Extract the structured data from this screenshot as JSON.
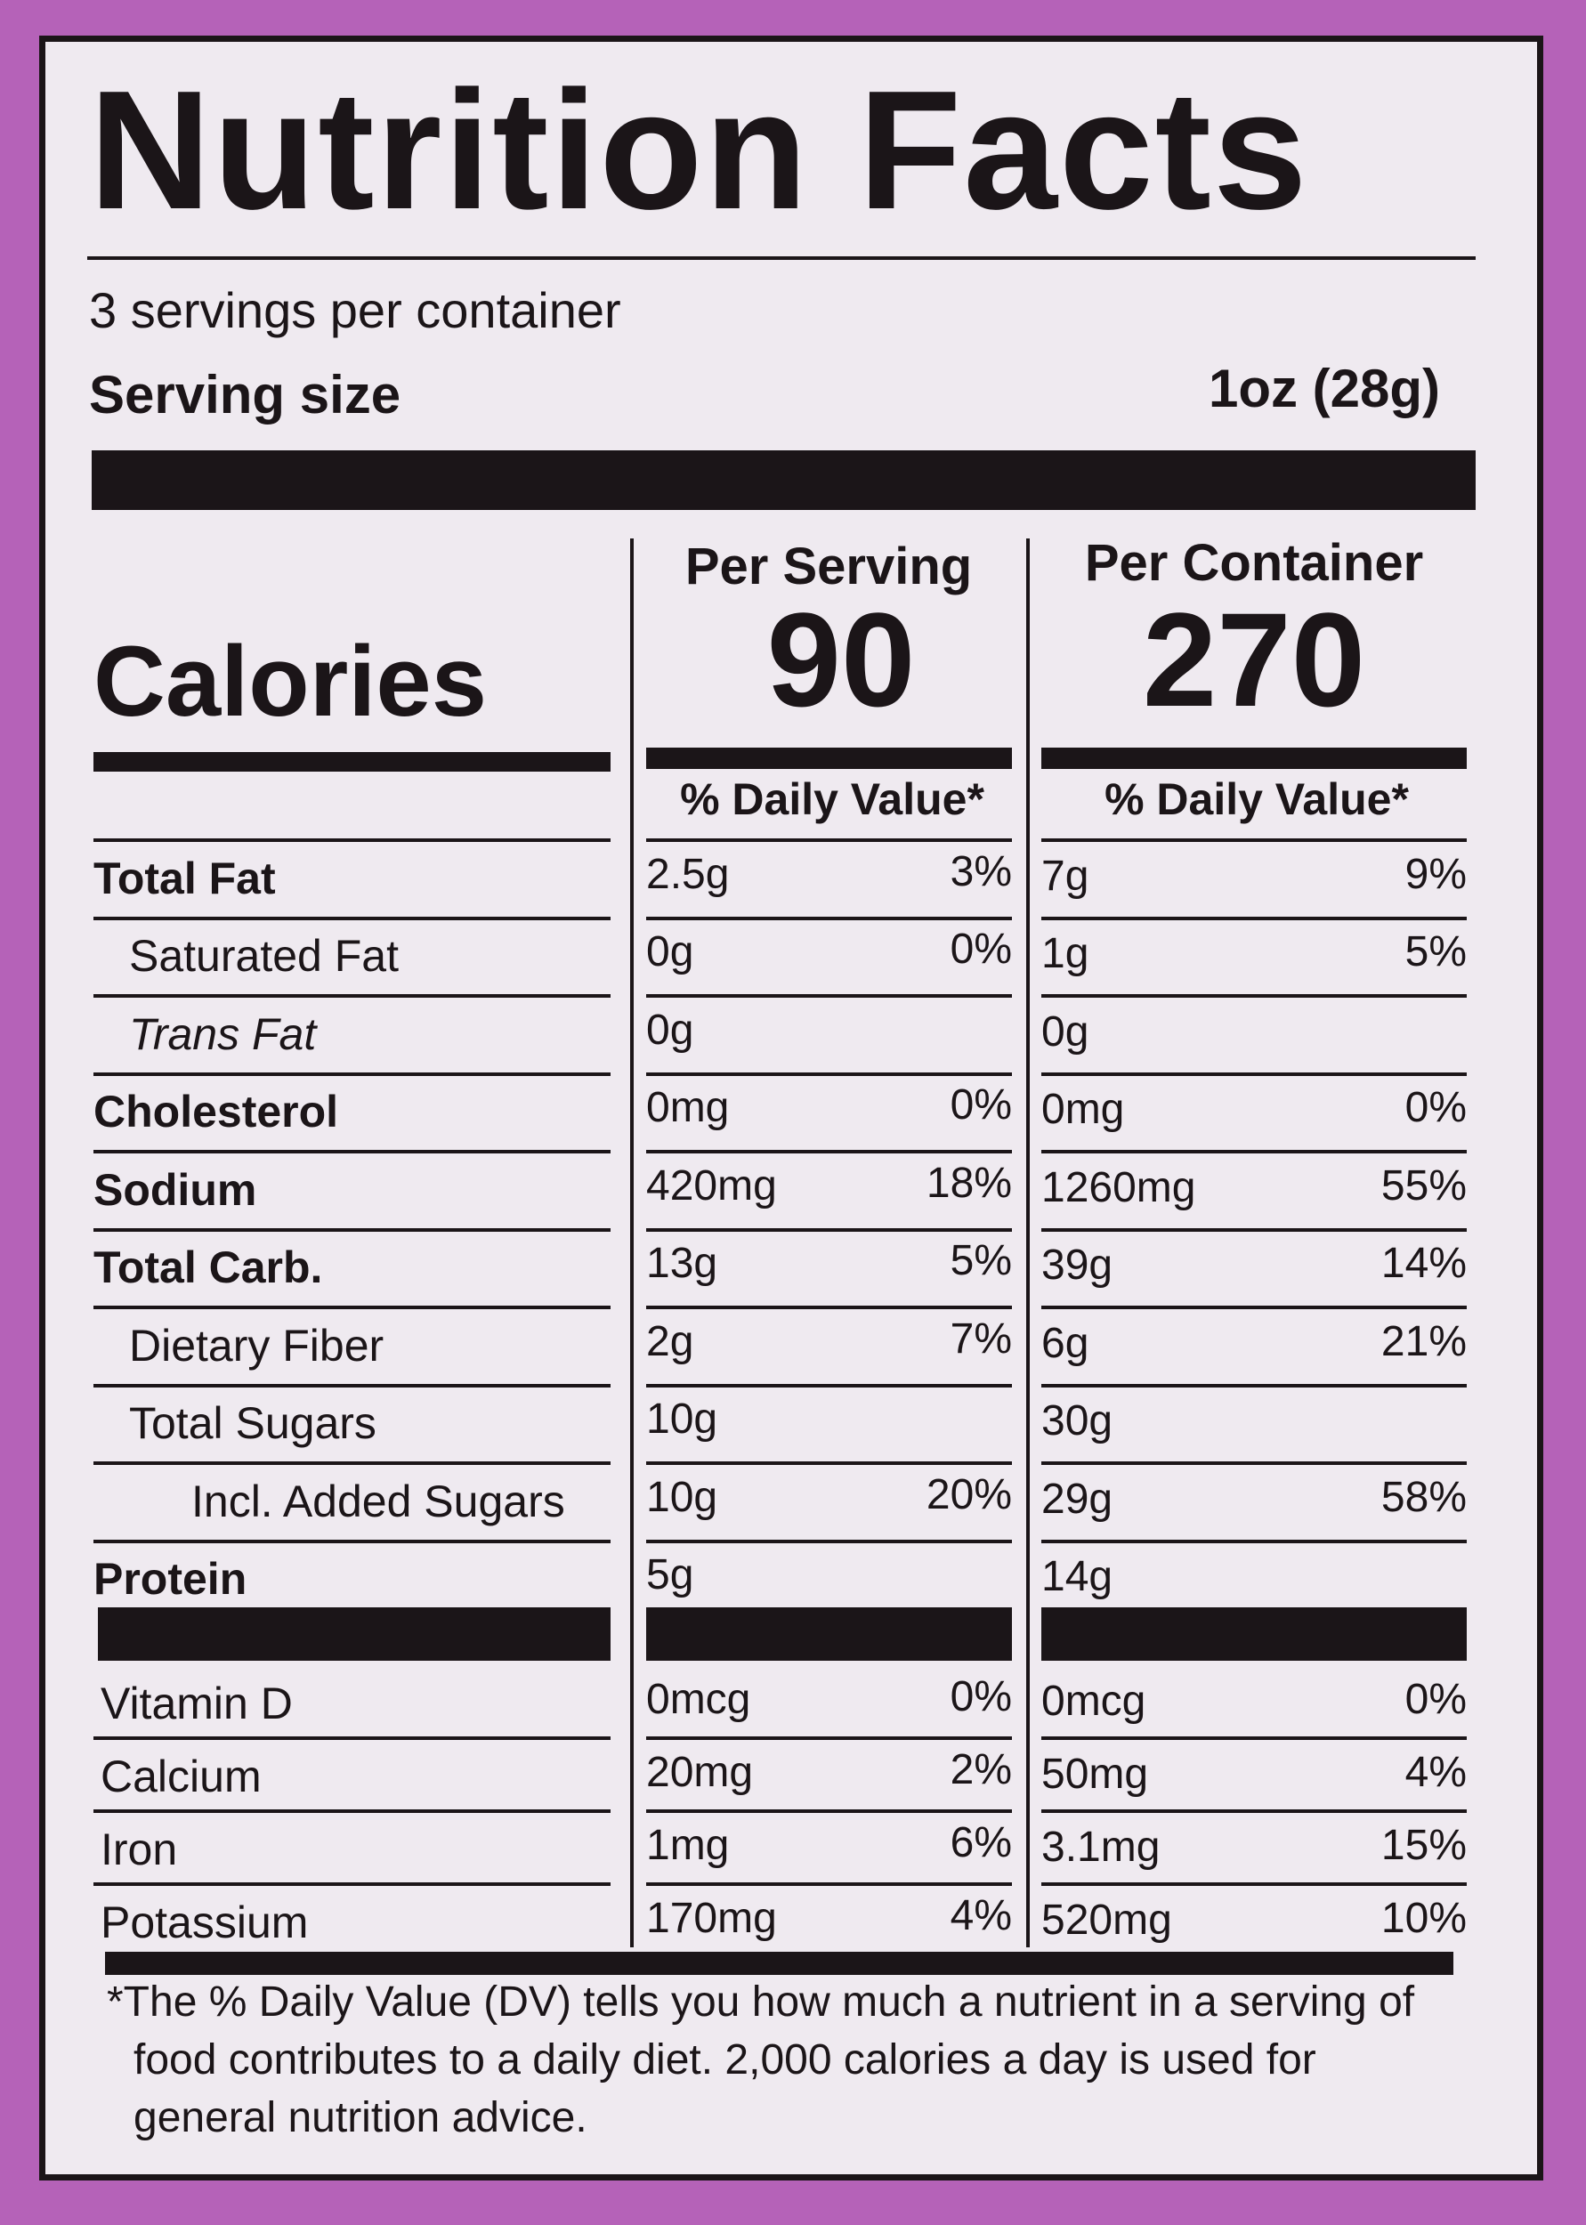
{
  "title": "Nutrition Facts",
  "servings_per_container": "3 servings per container",
  "serving_size": {
    "label": "Serving size",
    "value": "1oz (28g)"
  },
  "calories": {
    "label": "Calories",
    "per_serving": {
      "header": "Per Serving",
      "value": "90",
      "dv_header": "% Daily Value*"
    },
    "per_container": {
      "header": "Per Container",
      "value": "270",
      "dv_header": "% Daily Value*"
    }
  },
  "nutrients": [
    {
      "name": "Total Fat",
      "serving": "2.5g",
      "serving_dv": "3%",
      "container": "7g",
      "container_dv": "9%"
    },
    {
      "name": "Saturated Fat",
      "serving": "0g",
      "serving_dv": "0%",
      "container": "1g",
      "container_dv": "5%"
    },
    {
      "name": "Trans Fat",
      "serving": "0g",
      "serving_dv": null,
      "container": "0g",
      "container_dv": null
    },
    {
      "name": "Cholesterol",
      "serving": "0mg",
      "serving_dv": "0%",
      "container": "0mg",
      "container_dv": "0%"
    },
    {
      "name": "Sodium",
      "serving": "420mg",
      "serving_dv": "18%",
      "container": "1260mg",
      "container_dv": "55%"
    },
    {
      "name": "Total Carb.",
      "serving": "13g",
      "serving_dv": "5%",
      "container": "39g",
      "container_dv": "14%"
    },
    {
      "name": "Dietary Fiber",
      "serving": "2g",
      "serving_dv": "7%",
      "container": "6g",
      "container_dv": "21%"
    },
    {
      "name": "Total Sugars",
      "serving": "10g",
      "serving_dv": null,
      "container": "30g",
      "container_dv": null
    },
    {
      "name": "Incl. Added Sugars",
      "serving": "10g",
      "serving_dv": "20%",
      "container": "29g",
      "container_dv": "58%"
    },
    {
      "name": "Protein",
      "serving": "5g",
      "serving_dv": null,
      "container": "14g",
      "container_dv": null
    }
  ],
  "vitamins": [
    {
      "name": "Vitamin D",
      "serving": "0mcg",
      "serving_dv": "0%",
      "container": "0mcg",
      "container_dv": "0%"
    },
    {
      "name": "Calcium",
      "serving": "20mg",
      "serving_dv": "2%",
      "container": "50mg",
      "container_dv": "4%"
    },
    {
      "name": "Iron",
      "serving": "1mg",
      "serving_dv": "6%",
      "container": "3.1mg",
      "container_dv": "15%"
    },
    {
      "name": "Potassium",
      "serving": "170mg",
      "serving_dv": "4%",
      "container": "520mg",
      "container_dv": "10%"
    }
  ],
  "footnote": [
    "*The % Daily Value (DV) tells you how much a nutrient in a serving of",
    "food contributes to a daily diet. 2,000 calories a day is used for",
    "general nutrition advice."
  ]
}
